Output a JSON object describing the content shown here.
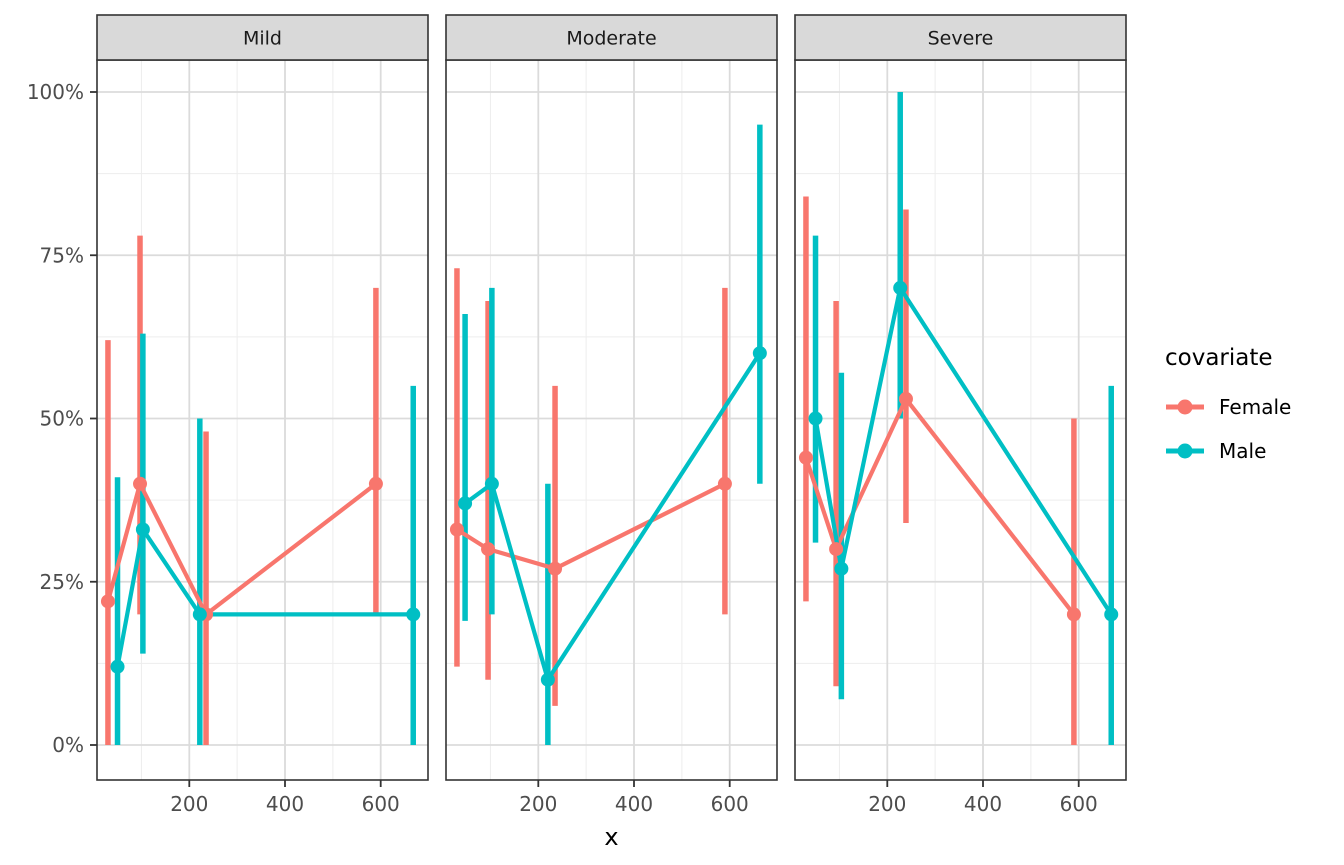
{
  "chart_data": {
    "type": "line",
    "title": "",
    "xlabel": "x",
    "ylabel": "",
    "xlim": [
      0,
      700
    ],
    "ylim": [
      0,
      100
    ],
    "x_ticks": [
      200,
      400,
      600
    ],
    "x_minor": [
      100,
      300,
      500,
      700
    ],
    "y_ticks": [
      0,
      25,
      50,
      75,
      100
    ],
    "y_tick_labels": [
      "0%",
      "25%",
      "50%",
      "75%",
      "100%"
    ],
    "grid": "on",
    "facet_titles": [
      "Mild",
      "Moderate",
      "Severe"
    ],
    "legend": {
      "title": "covariate",
      "position": "right",
      "entries": [
        {
          "label": "Female",
          "color": "#F8766D"
        },
        {
          "label": "Male",
          "color": "#00BFC4"
        }
      ]
    },
    "panels": [
      {
        "title": "Mild",
        "series": [
          {
            "name": "Female",
            "color": "#F8766D",
            "x": [
              30,
              97,
              235,
              590
            ],
            "y": [
              22,
              40,
              20,
              40
            ],
            "ymin": [
              0,
              20,
              0,
              20
            ],
            "ymax": [
              62,
              78,
              48,
              70
            ]
          },
          {
            "name": "Male",
            "color": "#00BFC4",
            "x": [
              50,
              103,
              222,
              668
            ],
            "y": [
              12,
              33,
              20,
              20
            ],
            "ymin": [
              0,
              14,
              0,
              0
            ],
            "ymax": [
              41,
              63,
              50,
              55
            ]
          }
        ]
      },
      {
        "title": "Moderate",
        "series": [
          {
            "name": "Female",
            "color": "#F8766D",
            "x": [
              30,
              95,
              235,
              590
            ],
            "y": [
              33,
              30,
              27,
              40
            ],
            "ymin": [
              12,
              10,
              6,
              20
            ],
            "ymax": [
              73,
              68,
              55,
              70
            ]
          },
          {
            "name": "Male",
            "color": "#00BFC4",
            "x": [
              47,
              103,
              220,
              663
            ],
            "y": [
              37,
              40,
              10,
              60
            ],
            "ymin": [
              19,
              20,
              0,
              40
            ],
            "ymax": [
              66,
              70,
              40,
              95
            ]
          }
        ]
      },
      {
        "title": "Severe",
        "series": [
          {
            "name": "Female",
            "color": "#F8766D",
            "x": [
              30,
              93,
              239,
              590
            ],
            "y": [
              44,
              30,
              53,
              20
            ],
            "ymin": [
              22,
              9,
              34,
              0
            ],
            "ymax": [
              84,
              68,
              82,
              50
            ]
          },
          {
            "name": "Male",
            "color": "#00BFC4",
            "x": [
              50,
              104,
              227,
              668
            ],
            "y": [
              50,
              27,
              70,
              20
            ],
            "ymin": [
              31,
              7,
              50,
              0
            ],
            "ymax": [
              78,
              57,
              100,
              55
            ]
          }
        ]
      }
    ],
    "theme": {
      "strip_fill": "#D9D9D9",
      "panel_border": "#333333",
      "grid_major": "#DBDBDB",
      "grid_minor": "#EDEDED",
      "axis_text": "#4D4D4D",
      "text": "#000000",
      "background": "#FFFFFF"
    }
  }
}
